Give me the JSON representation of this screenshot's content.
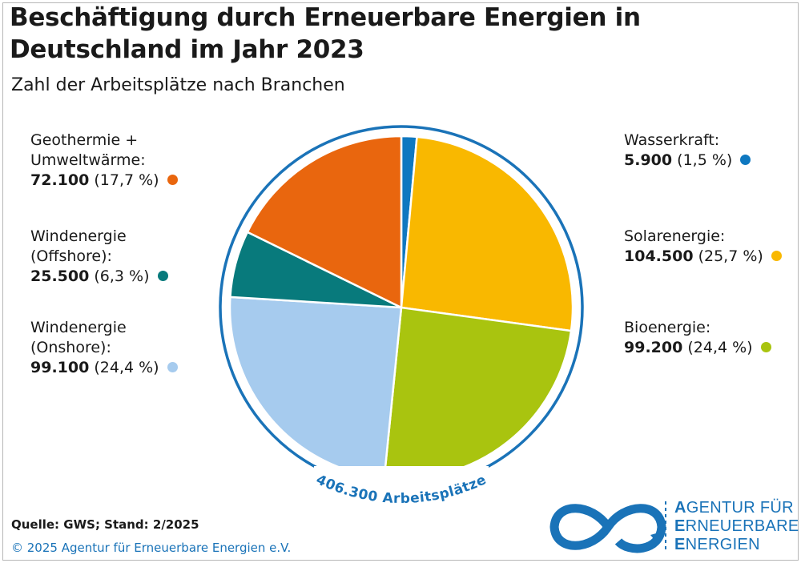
{
  "header": {
    "title": "Beschäftigung durch Erneuerbare Energien in Deutschland im Jahr 2023",
    "subtitle": "Zahl der Arbeitsplätze nach Branchen"
  },
  "chart_data": {
    "type": "pie",
    "title": "Beschäftigung durch Erneuerbare Energien in Deutschland im Jahr 2023",
    "subtitle": "Zahl der Arbeitsplätze nach Branchen",
    "total_label": "406.300 Arbeitsplätze",
    "slices": [
      {
        "name": "Wasserkraft:",
        "value": 5900,
        "value_label": "5.900",
        "pct_label": "(1,5 %)",
        "color": "#0f78c0"
      },
      {
        "name": "Solarenergie:",
        "value": 104500,
        "value_label": "104.500",
        "pct_label": "(25,7 %)",
        "color": "#f9b800"
      },
      {
        "name": "Bioenergie:",
        "value": 99200,
        "value_label": "99.200",
        "pct_label": "(24,4 %)",
        "color": "#a9c40f"
      },
      {
        "name": "Windenergie (Onshore):",
        "value": 99100,
        "value_label": "99.100",
        "pct_label": "(24,4 %)",
        "color": "#a6cbee"
      },
      {
        "name": "Windenergie (Offshore):",
        "value": 25500,
        "value_label": "25.500",
        "pct_label": "(6,3 %)",
        "color": "#087a7c"
      },
      {
        "name": "Geothermie + Umweltwärme:",
        "value": 72100,
        "value_label": "72.100",
        "pct_label": "(17,7 %)",
        "color": "#e9660e"
      }
    ]
  },
  "labels": {
    "wasser": {
      "line1": "Wasserkraft:"
    },
    "solar": {
      "line1": "Solarenergie:"
    },
    "bio": {
      "line1": "Bioenergie:"
    },
    "onshore": {
      "line1": "Windenergie",
      "line2": "(Onshore):"
    },
    "offshore": {
      "line1": "Windenergie",
      "line2": "(Offshore):"
    },
    "geo": {
      "line1": "Geothermie +",
      "line2": "Umweltwärme:"
    }
  },
  "footer": {
    "source": "Quelle: GWS; Stand: 2/2025",
    "copyright": "© 2025 Agentur für Erneuerbare Energien e.V."
  },
  "logo": {
    "line1_initial": "A",
    "line1_rest": "GENTUR FÜR",
    "line2_initial": "E",
    "line2_rest": "RNEUERBARE",
    "line3_initial": "E",
    "line3_rest": "NERGIEN",
    "color": "#1a73b8"
  },
  "colors": {
    "ring": "#1a73b8",
    "accent": "#1a73b8"
  }
}
